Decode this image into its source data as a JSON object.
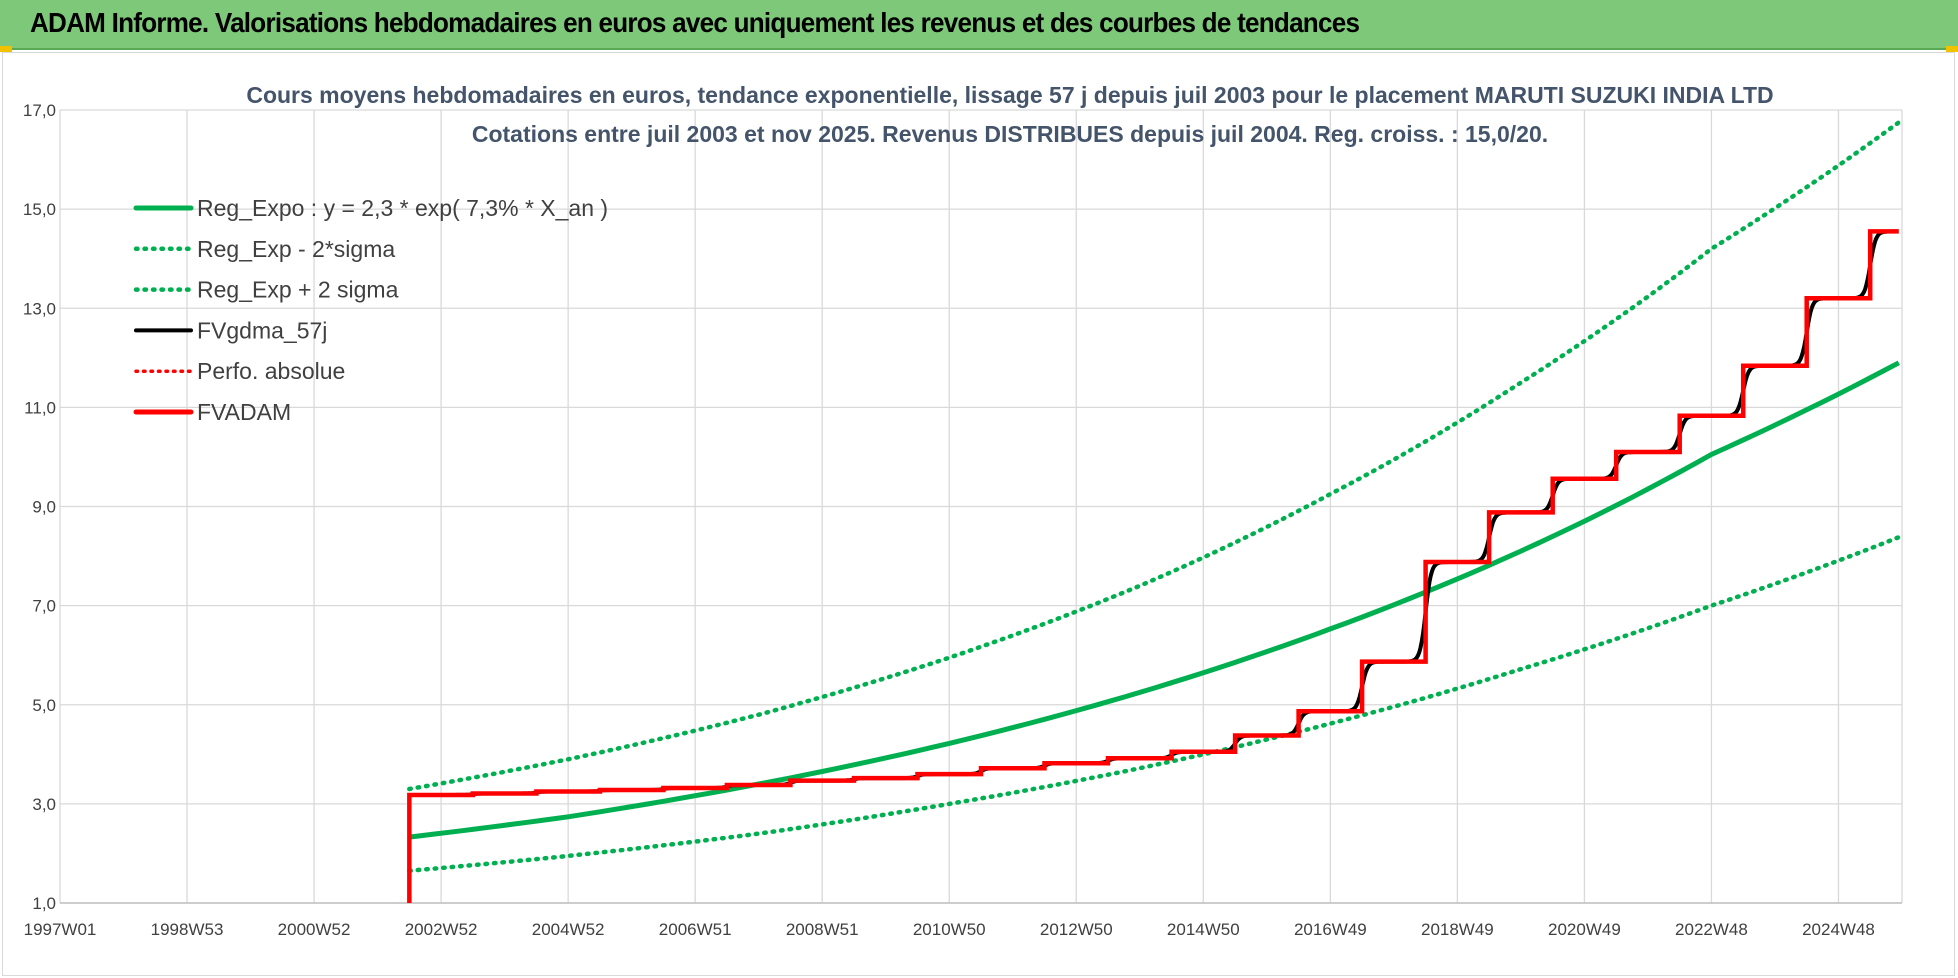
{
  "header": {
    "title": "ADAM Informe. Valorisations hebdomadaires en euros avec uniquement les revenus et des courbes de tendances"
  },
  "colors": {
    "banner": "#7ec87a",
    "green": "#00b050",
    "black": "#000000",
    "red": "#ff0000",
    "grid": "#d9d9d9",
    "title": "#44546a"
  },
  "chart_data": {
    "type": "line",
    "title_line1": "Cours moyens hebdomadaires en euros, tendance exponentielle, lissage 57 j depuis juil 2003 pour le placement MARUTI SUZUKI INDIA LTD",
    "title_line2": "Cotations entre juil 2003 et nov 2025. Revenus DISTRIBUES depuis juil 2004. Reg. croiss. : 15,0/20.",
    "xlabel": "",
    "ylabel": "",
    "x_start": 1997.0,
    "x_end": 2026.0,
    "ylim": [
      1.0,
      17.0
    ],
    "y_ticks": [
      "1,0",
      "3,0",
      "5,0",
      "7,0",
      "9,0",
      "11,0",
      "13,0",
      "15,0",
      "17,0"
    ],
    "x_ticks": [
      {
        "label": "1997W01",
        "x": 1997.0
      },
      {
        "label": "1998W53",
        "x": 1999.0
      },
      {
        "label": "2000W52",
        "x": 2001.0
      },
      {
        "label": "2002W52",
        "x": 2003.0
      },
      {
        "label": "2004W52",
        "x": 2005.0
      },
      {
        "label": "2006W51",
        "x": 2007.0
      },
      {
        "label": "2008W51",
        "x": 2009.0
      },
      {
        "label": "2010W50",
        "x": 2011.0
      },
      {
        "label": "2012W50",
        "x": 2013.0
      },
      {
        "label": "2014W50",
        "x": 2015.0
      },
      {
        "label": "2016W49",
        "x": 2017.0
      },
      {
        "label": "2018W49",
        "x": 2019.0
      },
      {
        "label": "2020W49",
        "x": 2021.0
      },
      {
        "label": "2022W48",
        "x": 2023.0
      },
      {
        "label": "2024W48",
        "x": 2025.0
      }
    ],
    "legend": [
      {
        "name": "Reg_Expo : y = 2,3 * exp( 7,3% *  X_an )",
        "style": "solid-green"
      },
      {
        "name": "Reg_Exp - 2*sigma",
        "style": "dotted-green"
      },
      {
        "name": "Reg_Exp + 2 sigma",
        "style": "dotted-green"
      },
      {
        "name": "FVgdma_57j",
        "style": "solid-black"
      },
      {
        "name": "Perfo. absolue",
        "style": "dotted-red"
      },
      {
        "name": "FVADAM",
        "style": "solid-red"
      }
    ],
    "series": [
      {
        "name": "Reg_Expo",
        "points": [
          [
            2002.5,
            2.33
          ],
          [
            2005,
            2.74
          ],
          [
            2008,
            3.4
          ],
          [
            2011,
            4.22
          ],
          [
            2014,
            5.25
          ],
          [
            2017,
            6.53
          ],
          [
            2020,
            8.1
          ],
          [
            2023,
            10.05
          ],
          [
            2025.95,
            11.9
          ]
        ]
      },
      {
        "name": "Reg_Exp - 2*sigma",
        "points": [
          [
            2002.5,
            1.65
          ],
          [
            2005,
            1.95
          ],
          [
            2008,
            2.4
          ],
          [
            2011,
            3.0
          ],
          [
            2014,
            3.72
          ],
          [
            2017,
            4.62
          ],
          [
            2020,
            5.72
          ],
          [
            2023,
            7.0
          ],
          [
            2025.95,
            8.38
          ]
        ]
      },
      {
        "name": "Reg_Exp + 2 sigma",
        "points": [
          [
            2002.5,
            3.3
          ],
          [
            2005,
            3.9
          ],
          [
            2008,
            4.8
          ],
          [
            2011,
            5.95
          ],
          [
            2014,
            7.4
          ],
          [
            2017,
            9.25
          ],
          [
            2020,
            11.5
          ],
          [
            2023,
            14.2
          ],
          [
            2025.95,
            16.75
          ]
        ]
      },
      {
        "name": "FVADAM",
        "start": [
          2002.5,
          1.0
        ],
        "base": 3.18,
        "steps": [
          [
            2003.5,
            3.21
          ],
          [
            2004.5,
            3.25
          ],
          [
            2005.5,
            3.28
          ],
          [
            2006.5,
            3.32
          ],
          [
            2007.5,
            3.38
          ],
          [
            2008.5,
            3.47
          ],
          [
            2009.5,
            3.52
          ],
          [
            2010.5,
            3.6
          ],
          [
            2011.5,
            3.72
          ],
          [
            2012.5,
            3.82
          ],
          [
            2013.5,
            3.92
          ],
          [
            2014.5,
            4.05
          ],
          [
            2015.5,
            4.38
          ],
          [
            2016.5,
            4.87
          ],
          [
            2017.5,
            5.87
          ],
          [
            2018.5,
            7.88
          ],
          [
            2019.5,
            8.88
          ],
          [
            2020.5,
            9.56
          ],
          [
            2021.5,
            10.1
          ],
          [
            2022.5,
            10.83
          ],
          [
            2023.5,
            11.84
          ],
          [
            2024.5,
            13.2
          ],
          [
            2025.5,
            14.55
          ]
        ],
        "x_end": 2025.95
      },
      {
        "name": "FVgdma_57j",
        "follows": "FVADAM",
        "smoothing_years": 0.22,
        "last": [
          2025.95,
          14.45
        ]
      }
    ]
  }
}
